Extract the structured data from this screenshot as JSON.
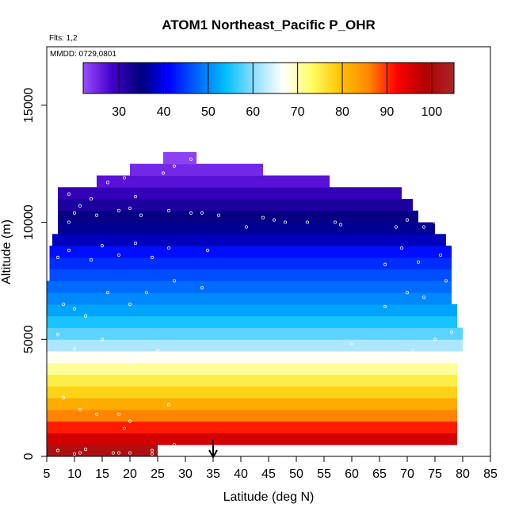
{
  "chart_data": {
    "type": "heatmap",
    "title": "ATOM1 Northeast_Pacific P_OHR",
    "annotations": [
      "Flts: 1,2",
      "MMDD: 0729,0801"
    ],
    "xlabel": "Latitude (deg N)",
    "ylabel": "Altitude (m)",
    "xlim": [
      5,
      85
    ],
    "ylim": [
      0,
      17500
    ],
    "x_ticks": [
      "5",
      "10",
      "15",
      "20",
      "25",
      "30",
      "35",
      "40",
      "45",
      "50",
      "55",
      "60",
      "65",
      "70",
      "75",
      "80",
      "85"
    ],
    "y_ticks": [
      "0",
      "5000",
      "10000",
      "15000"
    ],
    "colorbar": {
      "range": [
        22,
        105
      ],
      "ticks": [
        "30",
        "40",
        "50",
        "60",
        "70",
        "80",
        "90",
        "100"
      ],
      "colors": [
        "#9b4dff",
        "#4400cc",
        "#00007a",
        "#0000ff",
        "#0066ff",
        "#00bfff",
        "#8fdfff",
        "#ffffff",
        "#ffff66",
        "#ffc400",
        "#ff8800",
        "#ff0000",
        "#b30000",
        "#a52a2a"
      ]
    },
    "marker": {
      "latitude": 35,
      "symbol": "arrow"
    },
    "grid": false,
    "bands": [
      {
        "alt": [
          0,
          500
        ],
        "lat": [
          5,
          25
        ],
        "value": 101
      },
      {
        "alt": [
          500,
          1000
        ],
        "lat": [
          5,
          79
        ],
        "value": 96
      },
      {
        "alt": [
          1000,
          1500
        ],
        "lat": [
          5,
          79
        ],
        "value": 91
      },
      {
        "alt": [
          1500,
          2000
        ],
        "lat": [
          5,
          79
        ],
        "value": 86
      },
      {
        "alt": [
          2000,
          2500
        ],
        "lat": [
          5,
          79
        ],
        "value": 82
      },
      {
        "alt": [
          2500,
          3000
        ],
        "lat": [
          5,
          79
        ],
        "value": 78
      },
      {
        "alt": [
          3000,
          3500
        ],
        "lat": [
          5,
          79
        ],
        "value": 75
      },
      {
        "alt": [
          3500,
          4000
        ],
        "lat": [
          5,
          79
        ],
        "value": 71
      },
      {
        "alt": [
          4000,
          4500
        ],
        "lat": [
          5,
          79
        ],
        "value": 67
      },
      {
        "alt": [
          4500,
          5000
        ],
        "lat": [
          5,
          80
        ],
        "value": 62
      },
      {
        "alt": [
          5000,
          5500
        ],
        "lat": [
          5,
          80
        ],
        "value": 58
      },
      {
        "alt": [
          5500,
          6000
        ],
        "lat": [
          5,
          79
        ],
        "value": 55
      },
      {
        "alt": [
          6000,
          6500
        ],
        "lat": [
          5,
          79
        ],
        "value": 52
      },
      {
        "alt": [
          6500,
          7000
        ],
        "lat": [
          5,
          78
        ],
        "value": 50
      },
      {
        "alt": [
          7000,
          7500
        ],
        "lat": [
          5,
          78
        ],
        "value": 48
      },
      {
        "alt": [
          7500,
          8000
        ],
        "lat": [
          5.5,
          78
        ],
        "value": 46
      },
      {
        "alt": [
          8000,
          8500
        ],
        "lat": [
          5.5,
          78
        ],
        "value": 44
      },
      {
        "alt": [
          8500,
          9000
        ],
        "lat": [
          5.5,
          78
        ],
        "value": 42
      },
      {
        "alt": [
          9000,
          9500
        ],
        "lat": [
          6,
          77
        ],
        "value": 38
      },
      {
        "alt": [
          9500,
          10000
        ],
        "lat": [
          7,
          75
        ],
        "value": 36
      },
      {
        "alt": [
          10000,
          10500
        ],
        "lat": [
          7,
          72
        ],
        "value": 34
      },
      {
        "alt": [
          10500,
          11000
        ],
        "lat": [
          7,
          71
        ],
        "value": 32
      },
      {
        "alt": [
          11000,
          11500
        ],
        "lat": [
          7,
          69
        ],
        "value": 30
      },
      {
        "alt": [
          11500,
          12000
        ],
        "lat": [
          14,
          56
        ],
        "value": 27
      },
      {
        "alt": [
          12000,
          12500
        ],
        "lat": [
          20,
          44
        ],
        "value": 25
      },
      {
        "alt": [
          12500,
          13000
        ],
        "lat": [
          26,
          32
        ],
        "value": 23
      }
    ],
    "points": [
      [
        7,
        250
      ],
      [
        10,
        100
      ],
      [
        11,
        150
      ],
      [
        12,
        300
      ],
      [
        17,
        150
      ],
      [
        18,
        150
      ],
      [
        20,
        150
      ],
      [
        24,
        250
      ],
      [
        24,
        100
      ],
      [
        8,
        2500
      ],
      [
        11,
        2000
      ],
      [
        14,
        1800
      ],
      [
        18,
        1800
      ],
      [
        19,
        1200
      ],
      [
        20,
        1500
      ],
      [
        27,
        2200
      ],
      [
        28,
        500
      ],
      [
        7,
        5200
      ],
      [
        10,
        4600
      ],
      [
        15,
        5000
      ],
      [
        17,
        4200
      ],
      [
        20,
        4000
      ],
      [
        25,
        4500
      ],
      [
        30,
        4400
      ],
      [
        60,
        4800
      ],
      [
        71,
        4500
      ],
      [
        75,
        5000
      ],
      [
        78,
        5300
      ],
      [
        8,
        6500
      ],
      [
        10,
        6300
      ],
      [
        12,
        6000
      ],
      [
        16,
        7000
      ],
      [
        20,
        6500
      ],
      [
        23,
        7000
      ],
      [
        28,
        7500
      ],
      [
        33,
        7200
      ],
      [
        66,
        6400
      ],
      [
        70,
        7000
      ],
      [
        73,
        6800
      ],
      [
        77,
        7500
      ],
      [
        7,
        8500
      ],
      [
        9,
        8800
      ],
      [
        13,
        8400
      ],
      [
        15,
        9000
      ],
      [
        18,
        8600
      ],
      [
        21,
        9100
      ],
      [
        24,
        8500
      ],
      [
        27,
        8900
      ],
      [
        34,
        8800
      ],
      [
        66,
        8200
      ],
      [
        69,
        8900
      ],
      [
        72,
        8300
      ],
      [
        76,
        8600
      ],
      [
        9,
        10000
      ],
      [
        10,
        10400
      ],
      [
        11,
        10700
      ],
      [
        14,
        10300
      ],
      [
        18,
        10500
      ],
      [
        20,
        10600
      ],
      [
        22,
        10300
      ],
      [
        27,
        10500
      ],
      [
        31,
        10400
      ],
      [
        33,
        10400
      ],
      [
        36,
        10300
      ],
      [
        41,
        9800
      ],
      [
        44,
        10200
      ],
      [
        46,
        10100
      ],
      [
        48,
        10000
      ],
      [
        52,
        10000
      ],
      [
        57,
        10000
      ],
      [
        58,
        9900
      ],
      [
        68,
        9800
      ],
      [
        70,
        10100
      ],
      [
        73,
        9800
      ],
      [
        75,
        10000
      ],
      [
        9,
        11200
      ],
      [
        13,
        11000
      ],
      [
        16,
        11700
      ],
      [
        19,
        11900
      ],
      [
        21,
        11100
      ],
      [
        26,
        12100
      ],
      [
        28,
        12400
      ],
      [
        31,
        12700
      ]
    ]
  }
}
